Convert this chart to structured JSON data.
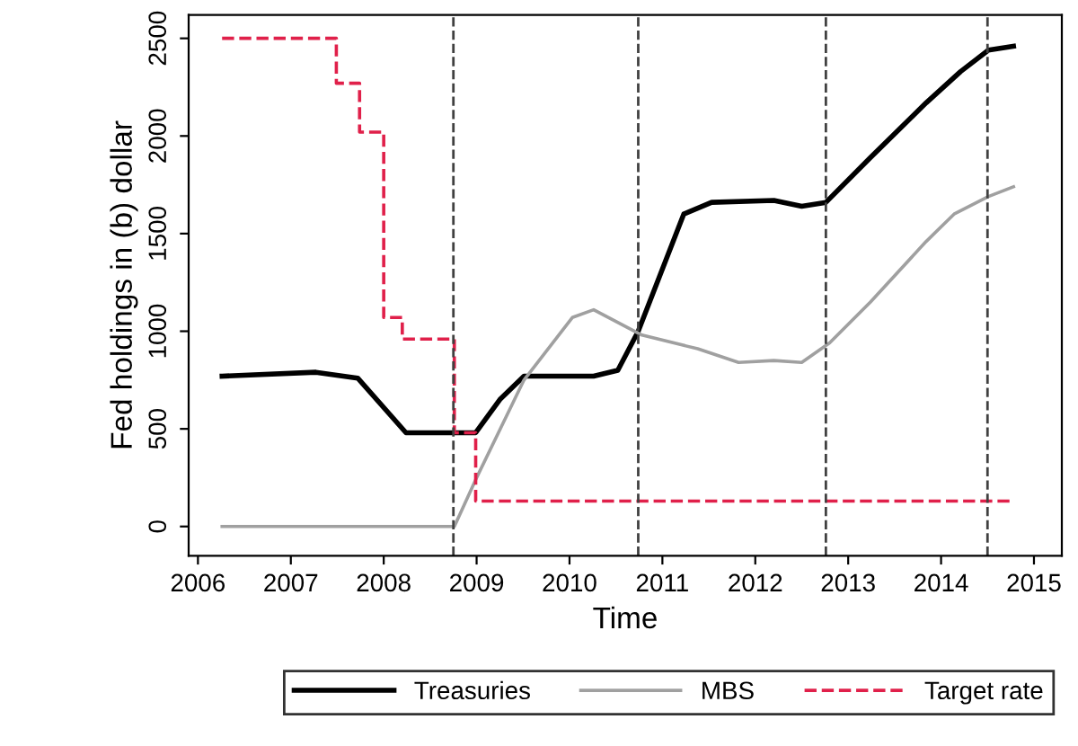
{
  "chart_data": {
    "type": "line",
    "xlabel": "Time",
    "ylabel": "Fed holdings in (b) dollar",
    "xlim": [
      2005.9,
      2015.3
    ],
    "ylim": [
      -150,
      2620
    ],
    "xticks": [
      2006,
      2007,
      2008,
      2009,
      2010,
      2011,
      2012,
      2013,
      2014,
      2015
    ],
    "yticks": [
      0,
      500,
      1000,
      1500,
      2000,
      2500
    ],
    "grid": false,
    "legend": "bottom",
    "marker": "none",
    "series": [
      {
        "name": "Treasuries",
        "color": "#000000",
        "line_style": "solid",
        "x": [
          2006.26,
          2007.27,
          2007.72,
          2008.24,
          2008.99,
          2009.25,
          2009.51,
          2010.26,
          2010.52,
          2010.74,
          2011.23,
          2011.53,
          2012.2,
          2012.5,
          2012.76,
          2013.24,
          2013.84,
          2014.21,
          2014.51,
          2014.78
        ],
        "values": [
          770,
          790,
          760,
          480,
          480,
          650,
          770,
          770,
          800,
          1000,
          1600,
          1660,
          1670,
          1640,
          1660,
          1890,
          2170,
          2330,
          2440,
          2460
        ]
      },
      {
        "name": "MBS",
        "color": "#a0a0a0",
        "line_style": "solid",
        "x": [
          2006.26,
          2008.76,
          2008.99,
          2009.51,
          2010.03,
          2010.26,
          2010.78,
          2011.38,
          2011.82,
          2012.2,
          2012.5,
          2012.8,
          2013.24,
          2013.84,
          2014.14,
          2014.51,
          2014.78
        ],
        "values": [
          0,
          0,
          240,
          750,
          1070,
          1110,
          980,
          910,
          840,
          850,
          840,
          940,
          1150,
          1460,
          1600,
          1690,
          1740
        ]
      },
      {
        "name": "Target rate",
        "color": "#e0204a",
        "type": "step",
        "line_style": "dashed",
        "x": [
          2006.26,
          2007.49,
          2007.74,
          2008.0,
          2008.2,
          2008.76,
          2008.99,
          2014.78
        ],
        "values": [
          2500,
          2270,
          2020,
          1070,
          960,
          480,
          130,
          130
        ]
      }
    ],
    "ref_lines": [
      {
        "axis": "x",
        "value": 2008.75,
        "color": "#404040",
        "line_style": "dashed"
      },
      {
        "axis": "x",
        "value": 2010.74,
        "color": "#404040",
        "line_style": "dashed"
      },
      {
        "axis": "x",
        "value": 2012.76,
        "color": "#404040",
        "line_style": "dashed"
      },
      {
        "axis": "x",
        "value": 2014.5,
        "color": "#404040",
        "line_style": "dashed"
      }
    ]
  }
}
